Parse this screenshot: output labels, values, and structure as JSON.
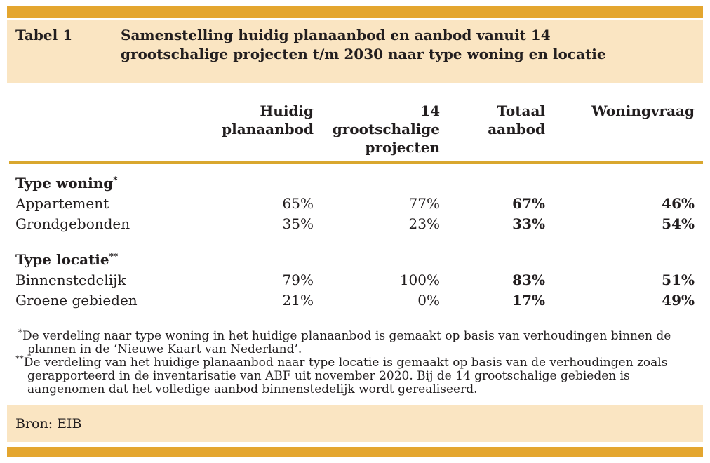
{
  "accent": {
    "bar_color": "#e4a62f",
    "rule_color": "#d9a72e",
    "panel_color": "#fae5c2",
    "text_color": "#221e1f"
  },
  "header": {
    "label": "Tabel 1",
    "title": "Samenstelling huidig planaanbod en aanbod vanuit 14 grootschalige projecten t/m 2030 naar type woning en locatie"
  },
  "table": {
    "column_headers_display": [
      "Huidig\nplanaanbod",
      "14\ngrootschalige\nprojecten",
      "Totaal\naanbod",
      "Woningvraag"
    ],
    "sections": [
      {
        "label": "Type woning",
        "marker": "*"
      },
      {
        "label": "Type locatie",
        "marker": "**"
      }
    ]
  },
  "footnotes": [
    {
      "marker": "*",
      "text": "De verdeling naar type woning in het huidige planaanbod is gemaakt op basis van verhoudingen binnen de plannen in de ‘Nieuwe Kaart van Nederland’."
    },
    {
      "marker": "**",
      "text": "De verdeling van het huidige planaanbod naar type locatie is gemaakt op basis van de verhoudingen zoals gerapporteerd in de inventarisatie van ABF uit november 2020. Bij de 14 grootschalige gebieden is aangenomen dat het volledige aanbod binnenstedelijk wordt gerealiseerd."
    }
  ],
  "source": {
    "text": "Bron: EIB"
  },
  "chart_data": {
    "type": "table",
    "table_number": "Tabel 1",
    "title": "Samenstelling huidig planaanbod en aanbod vanuit 14 grootschalige projecten t/m 2030 naar type woning en locatie",
    "columns": [
      "Huidig planaanbod",
      "14 grootschalige projecten",
      "Totaal aanbod",
      "Woningvraag"
    ],
    "row_groups": [
      {
        "group": "Type woning*",
        "rows": [
          {
            "label": "Appartement",
            "values": [
              "65%",
              "77%",
              "67%",
              "46%"
            ]
          },
          {
            "label": "Grondgebonden",
            "values": [
              "35%",
              "23%",
              "33%",
              "54%"
            ]
          }
        ]
      },
      {
        "group": "Type locatie**",
        "rows": [
          {
            "label": "Binnenstedelijk",
            "values": [
              "79%",
              "100%",
              "83%",
              "51%"
            ]
          },
          {
            "label": "Groene gebieden",
            "values": [
              "21%",
              "0%",
              "17%",
              "49%"
            ]
          }
        ]
      }
    ],
    "bold_columns": [
      "Totaal aanbod",
      "Woningvraag"
    ],
    "source": "Bron: EIB"
  }
}
